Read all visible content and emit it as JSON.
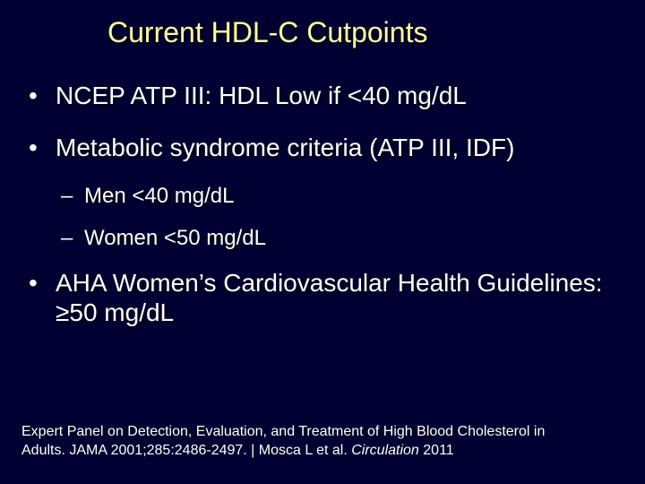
{
  "background_color": "#000033",
  "title_color": "#ffff99",
  "body_text_color": "#ffffff",
  "title": {
    "text": "Current HDL-C Cutpoints",
    "fontsize": 32
  },
  "bullets": {
    "b1": "NCEP ATP III:  HDL Low  if <40 mg/dL",
    "b2": "Metabolic syndrome criteria (ATP III, IDF)",
    "b2_sub1": "Men <40 mg/dL",
    "b2_sub2": "Women <50 mg/dL",
    "b3": "AHA Women’s Cardiovascular Health Guidelines:  ≥50 mg/dL"
  },
  "citation": {
    "part1": "Expert Panel on Detection, Evaluation, and Treatment of High Blood Cholesterol in Adults. JAMA 2001;285:2486-2497. | Mosca L et al. ",
    "journal": "Circulation",
    "part2": " 2011"
  },
  "typography": {
    "bullet_l1_fontsize": 28,
    "bullet_l2_fontsize": 24,
    "citation_fontsize": 16,
    "font_family": "Arial"
  }
}
